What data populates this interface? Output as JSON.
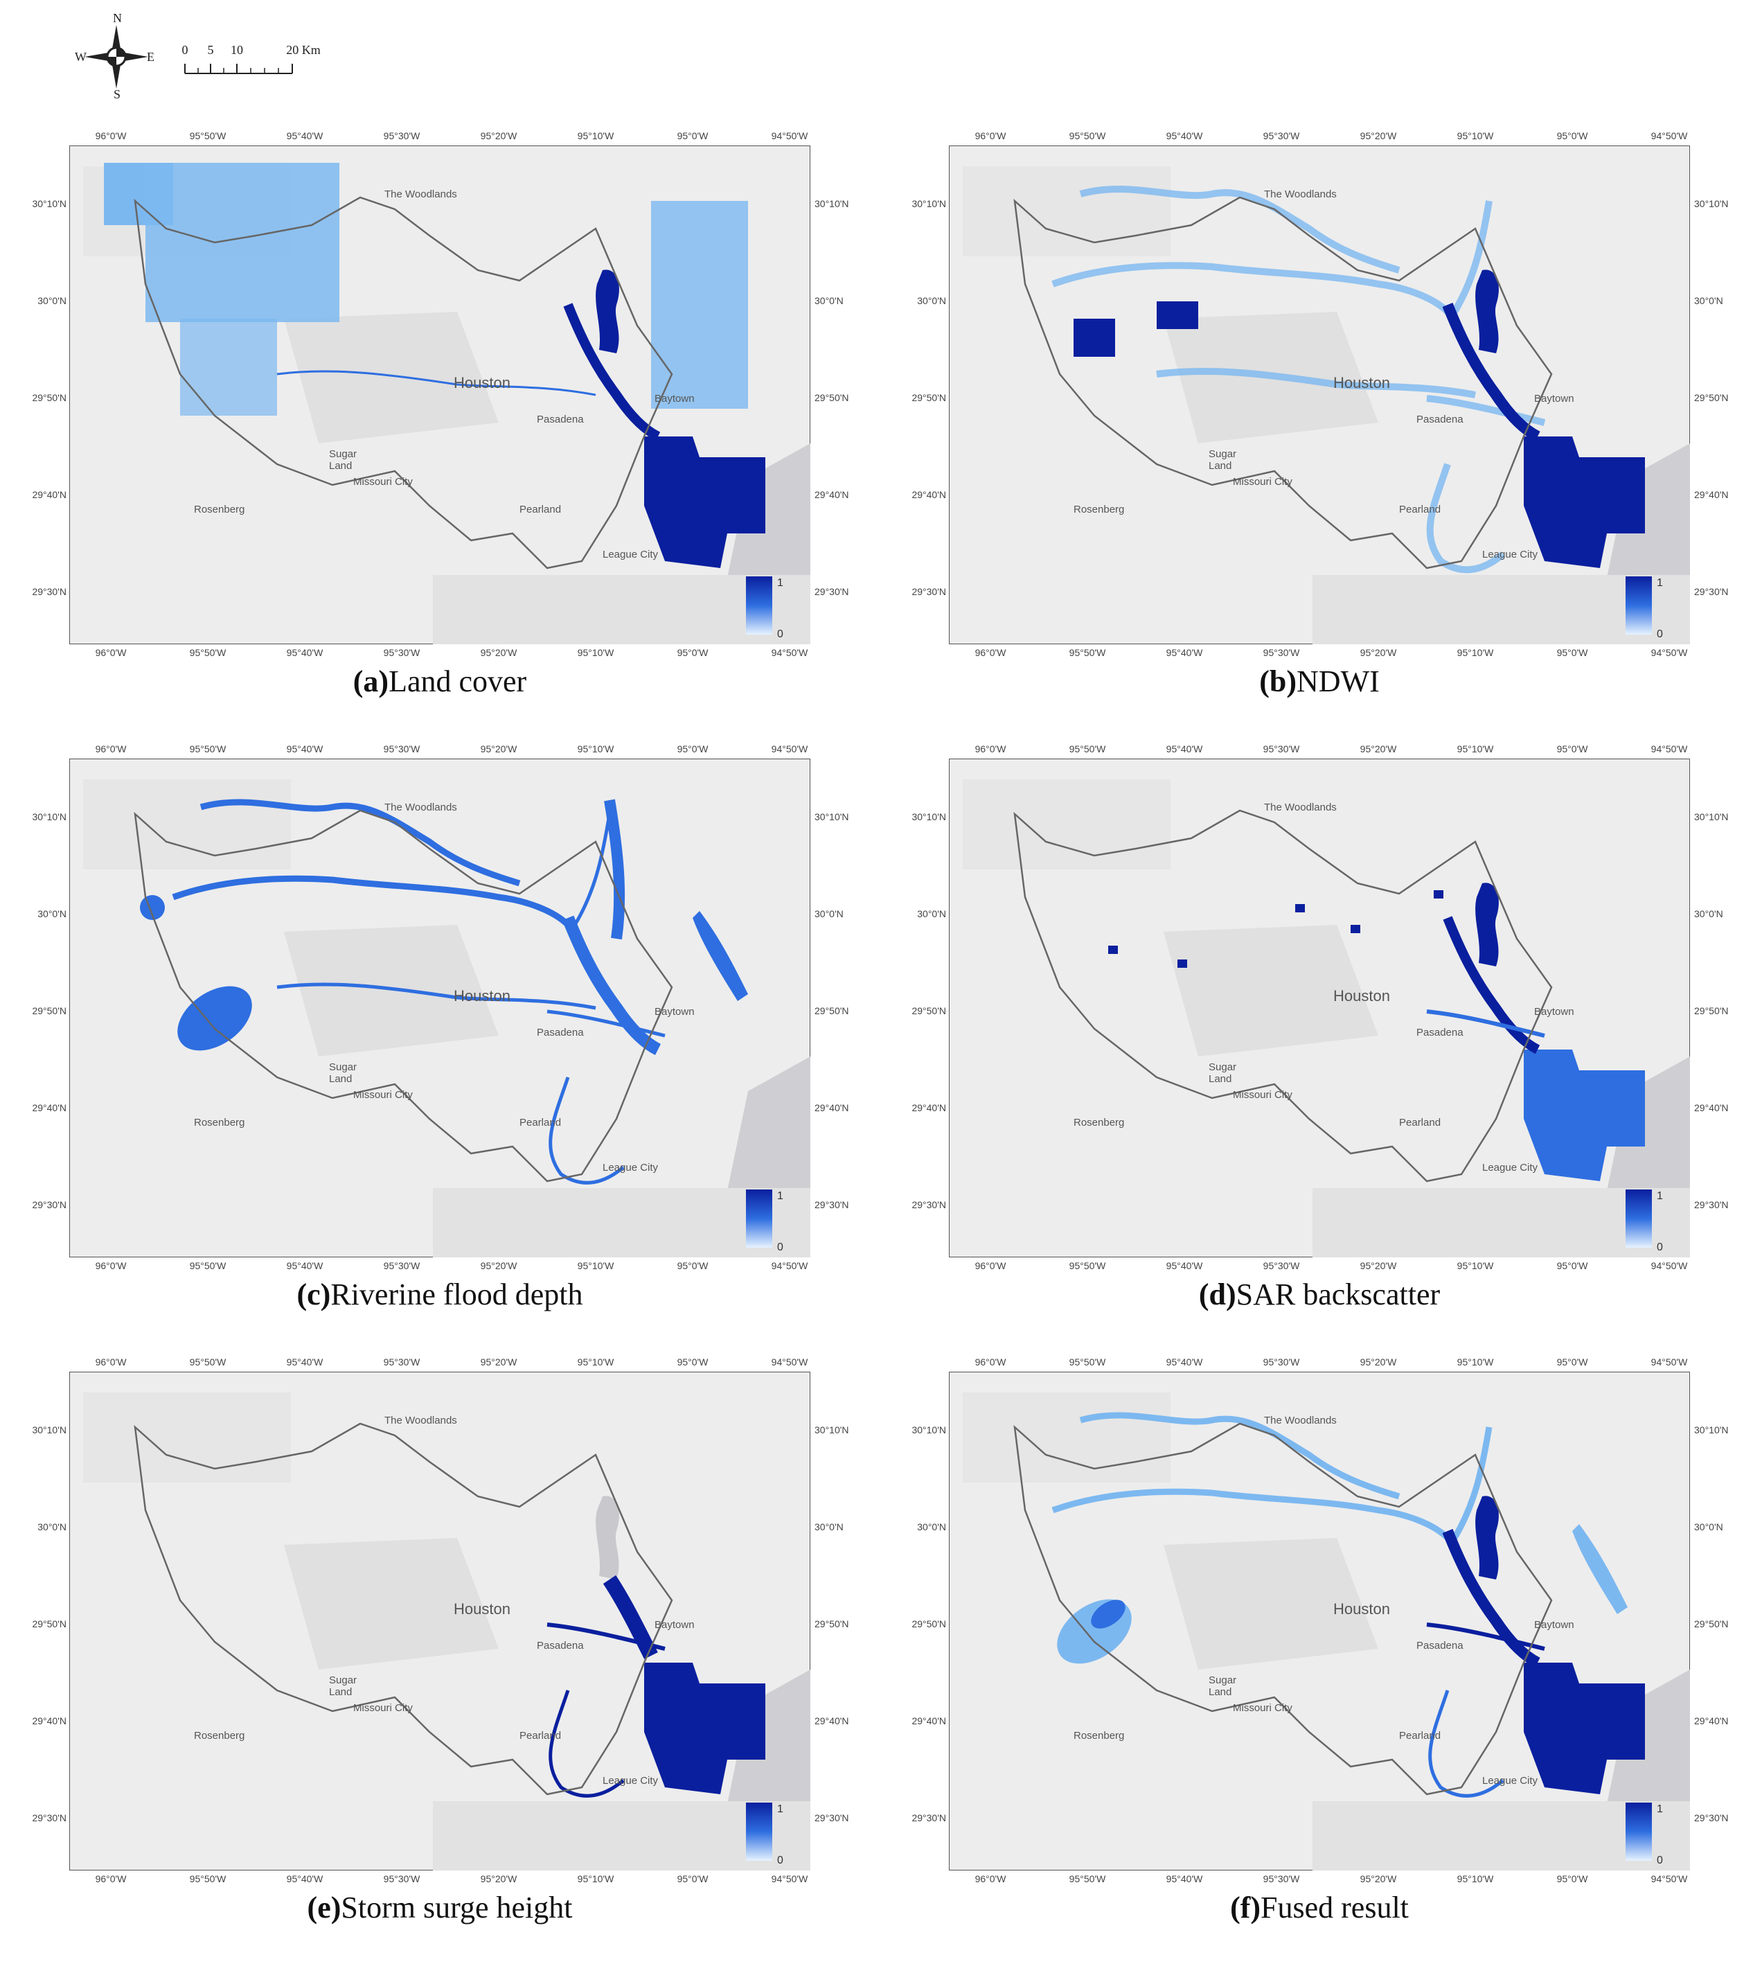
{
  "compass": {
    "n": "N",
    "s": "S",
    "e": "E",
    "w": "W"
  },
  "scale_bar": {
    "ticks": [
      "0",
      "5",
      "10",
      "20 Km"
    ]
  },
  "axes": {
    "top": [
      "96°0'W",
      "95°50'W",
      "95°40'W",
      "95°30'W",
      "95°20'W",
      "95°10'W",
      "95°0'W",
      "94°50'W"
    ],
    "bottom": [
      "96°0'W",
      "95°50'W",
      "95°40'W",
      "95°30'W",
      "95°20'W",
      "95°10'W",
      "95°0'W",
      "94°50'W"
    ],
    "left": [
      "30°10'N",
      "30°0'N",
      "29°50'N",
      "29°40'N",
      "29°30'N"
    ],
    "right": [
      "30°10'N",
      "30°0'N",
      "29°50'N",
      "29°40'N",
      "29°30'N"
    ]
  },
  "places": {
    "woodlands": "The Woodlands",
    "houston": "Houston",
    "pasadena": "Pasadena",
    "baytown": "Baytown",
    "sugar_land_1": "Sugar",
    "sugar_land_2": "Land",
    "missouri_city": "Missouri City",
    "rosenberg": "Rosenberg",
    "pearland": "Pearland",
    "league_city": "League City"
  },
  "legend": {
    "max": "1",
    "min": "0"
  },
  "colors": {
    "water_dark": "#0a1f9e",
    "water_mid": "#2e6ee0",
    "water_light": "#7cb8f0",
    "basemap": "#ededed",
    "boundary": "#666666"
  },
  "panels": [
    {
      "letter": "(a)",
      "title": "Land cover",
      "layer": "landcover"
    },
    {
      "letter": "(b)",
      "title": "NDWI",
      "layer": "ndwi"
    },
    {
      "letter": "(c)",
      "title": "Riverine flood depth",
      "layer": "riverine"
    },
    {
      "letter": "(d)",
      "title": "SAR backscatter",
      "layer": "sar"
    },
    {
      "letter": "(e)",
      "title": "Storm surge height",
      "layer": "surge"
    },
    {
      "letter": "(f)",
      "title": "Fused result",
      "layer": "fused"
    }
  ]
}
